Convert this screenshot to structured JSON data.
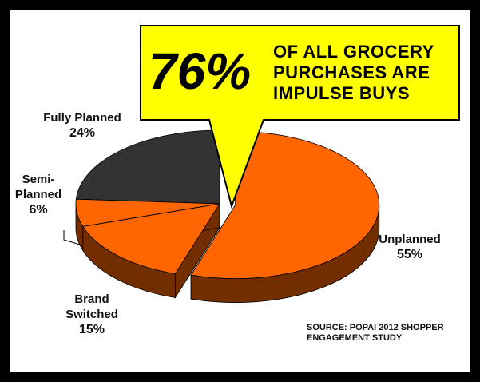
{
  "chart_data": {
    "type": "pie",
    "annotation_big": "76%",
    "annotation": "OF ALL GROCERY PURCHASES ARE IMPULSE BUYS",
    "source": "SOURCE: POPAI 2012 SHOPPER ENGAGEMENT STUDY",
    "categories": [
      "Unplanned",
      "Brand Switched",
      "Semi-Planned",
      "Fully Planned"
    ],
    "values": [
      55,
      15,
      6,
      24
    ],
    "value_labels": [
      "55%",
      "15%",
      "6%",
      "24%"
    ],
    "colors": [
      "#ff6600",
      "#ff6600",
      "#ff6600",
      "#333333"
    ]
  }
}
